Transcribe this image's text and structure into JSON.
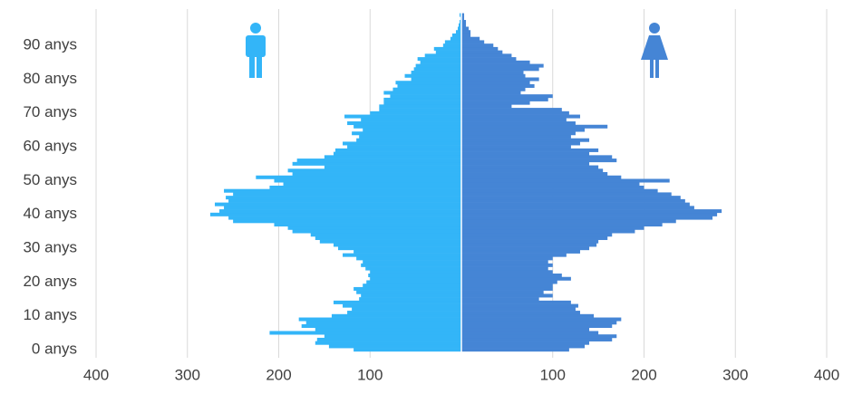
{
  "chart_data": {
    "type": "pyramid",
    "categories": [
      "0 anys",
      null,
      null,
      null,
      null,
      null,
      null,
      null,
      null,
      null,
      "10 anys",
      null,
      null,
      null,
      null,
      null,
      null,
      null,
      null,
      null,
      "20 anys",
      null,
      null,
      null,
      null,
      null,
      null,
      null,
      null,
      null,
      "30 anys",
      null,
      null,
      null,
      null,
      null,
      null,
      null,
      null,
      null,
      "40 anys",
      null,
      null,
      null,
      null,
      null,
      null,
      null,
      null,
      null,
      "50 anys",
      null,
      null,
      null,
      null,
      null,
      null,
      null,
      null,
      null,
      "60 anys",
      null,
      null,
      null,
      null,
      null,
      null,
      null,
      null,
      null,
      "70 anys",
      null,
      null,
      null,
      null,
      null,
      null,
      null,
      null,
      null,
      "80 anys",
      null,
      null,
      null,
      null,
      null,
      null,
      null,
      null,
      null,
      "90 anys",
      null,
      null,
      null,
      null,
      null,
      null,
      null,
      null,
      null
    ],
    "series": [
      {
        "side": "left",
        "color": "#33b5f8",
        "values": [
          118,
          145,
          160,
          158,
          150,
          210,
          160,
          175,
          170,
          178,
          142,
          125,
          120,
          130,
          140,
          112,
          110,
          115,
          118,
          108,
          104,
          100,
          102,
          100,
          105,
          110,
          108,
          115,
          130,
          118,
          135,
          140,
          155,
          160,
          165,
          185,
          190,
          205,
          250,
          255,
          275,
          265,
          260,
          270,
          255,
          258,
          250,
          260,
          210,
          195,
          205,
          225,
          185,
          190,
          150,
          185,
          180,
          150,
          140,
          138,
          125,
          130,
          115,
          112,
          120,
          108,
          118,
          125,
          110,
          128,
          100,
          90,
          90,
          85,
          85,
          78,
          85,
          75,
          70,
          72,
          55,
          62,
          55,
          52,
          50,
          45,
          48,
          40,
          28,
          30,
          20,
          18,
          12,
          10,
          6,
          4,
          3,
          2,
          1,
          2
        ]
      },
      {
        "side": "right",
        "color": "#4585d5",
        "values": [
          118,
          135,
          140,
          165,
          170,
          150,
          140,
          165,
          170,
          175,
          145,
          130,
          125,
          128,
          120,
          85,
          100,
          90,
          100,
          100,
          105,
          120,
          110,
          100,
          95,
          100,
          95,
          100,
          115,
          130,
          140,
          148,
          150,
          160,
          165,
          190,
          200,
          220,
          235,
          275,
          280,
          285,
          255,
          250,
          245,
          240,
          230,
          215,
          200,
          195,
          228,
          175,
          160,
          155,
          150,
          140,
          170,
          165,
          140,
          150,
          120,
          130,
          140,
          120,
          125,
          135,
          160,
          125,
          115,
          130,
          118,
          110,
          55,
          75,
          95,
          100,
          65,
          70,
          80,
          75,
          85,
          70,
          68,
          85,
          90,
          75,
          60,
          55,
          45,
          40,
          35,
          25,
          20,
          10,
          10,
          8,
          5,
          5,
          3,
          3
        ]
      }
    ],
    "xlim": [
      0,
      400
    ],
    "xticks": [
      100,
      200,
      300,
      400
    ],
    "grid": true
  }
}
